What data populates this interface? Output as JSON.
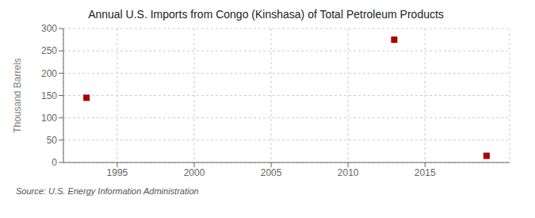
{
  "chart_data": {
    "type": "scatter",
    "title": "Annual U.S. Imports from Congo (Kinshasa) of Total Petroleum Products",
    "y_label": "Thousand Barrels",
    "annotations": [
      "Source: U.S. Energy Information Administration"
    ],
    "x": [
      1993,
      2013,
      2019
    ],
    "values": [
      145,
      275,
      15
    ],
    "color": "#aa0000",
    "marker": "square",
    "xlim": [
      1991.5,
      2020.5
    ],
    "ylim": [
      0,
      300
    ],
    "xticks": [
      1995,
      2000,
      2005,
      2010,
      2015
    ],
    "yticks": [
      0,
      50,
      100,
      150,
      200,
      250,
      300
    ],
    "grid": true
  }
}
